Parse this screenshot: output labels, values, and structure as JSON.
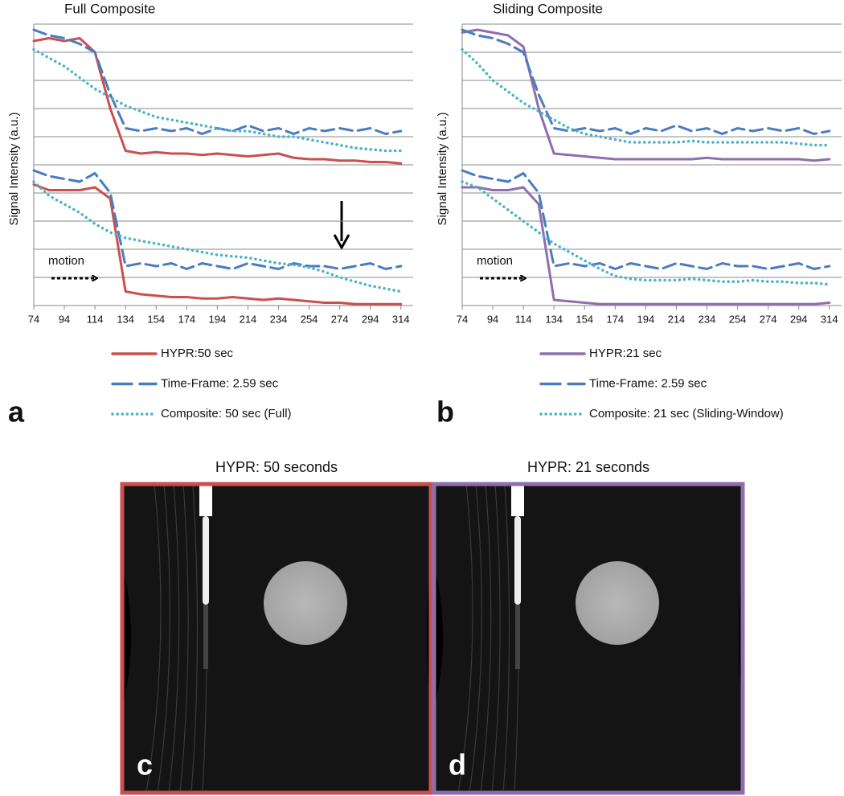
{
  "chart_data": [
    {
      "type": "line",
      "title": "Full Composite",
      "ylabel": "Signal Intensity (a.u.)",
      "panel": "a",
      "annotation": "motion",
      "x": [
        74,
        84,
        94,
        104,
        114,
        124,
        134,
        144,
        154,
        164,
        174,
        184,
        194,
        204,
        214,
        224,
        234,
        244,
        254,
        264,
        274,
        284,
        294,
        304,
        314
      ],
      "xlim": [
        74,
        322
      ],
      "xticks": [
        74,
        94,
        114,
        134,
        154,
        174,
        194,
        214,
        234,
        254,
        274,
        294,
        314
      ],
      "ylim": [
        0,
        10
      ],
      "yticks": [
        0,
        1,
        2,
        3,
        4,
        5,
        6,
        7,
        8,
        9,
        10
      ],
      "ytick_labels": false,
      "grid": true,
      "series": [
        {
          "name": "HYPR:50 sec",
          "color": "#c9504e",
          "style": "solid",
          "values": [
            9.4,
            9.5,
            9.4,
            9.5,
            9.0,
            7.0,
            5.5,
            5.4,
            5.45,
            5.4,
            5.4,
            5.35,
            5.4,
            5.35,
            5.3,
            5.35,
            5.4,
            5.25,
            5.2,
            5.2,
            5.15,
            5.15,
            5.1,
            5.1,
            5.05
          ],
          "lower_values": [
            4.3,
            4.1,
            4.1,
            4.1,
            4.2,
            3.8,
            0.5,
            0.4,
            0.35,
            0.3,
            0.3,
            0.25,
            0.25,
            0.3,
            0.25,
            0.2,
            0.25,
            0.2,
            0.15,
            0.1,
            0.1,
            0.05,
            0.05,
            0.05,
            0.05
          ]
        },
        {
          "name": "Time-Frame: 2.59 sec",
          "color": "#4a7cc0",
          "style": "dashed",
          "values": [
            9.8,
            9.6,
            9.5,
            9.3,
            9.0,
            7.5,
            6.3,
            6.2,
            6.3,
            6.2,
            6.3,
            6.1,
            6.3,
            6.2,
            6.4,
            6.2,
            6.3,
            6.1,
            6.3,
            6.2,
            6.3,
            6.2,
            6.3,
            6.1,
            6.2
          ],
          "lower_values": [
            4.8,
            4.6,
            4.5,
            4.4,
            4.7,
            4.0,
            1.4,
            1.5,
            1.4,
            1.5,
            1.3,
            1.5,
            1.4,
            1.3,
            1.5,
            1.4,
            1.3,
            1.5,
            1.4,
            1.4,
            1.3,
            1.4,
            1.5,
            1.3,
            1.4
          ]
        },
        {
          "name": "Composite: 50 sec (Full)",
          "color": "#4bb3c8",
          "style": "dotted",
          "values": [
            9.1,
            8.8,
            8.5,
            8.1,
            7.7,
            7.4,
            7.1,
            6.9,
            6.7,
            6.6,
            6.5,
            6.4,
            6.3,
            6.2,
            6.2,
            6.1,
            6.0,
            6.0,
            5.9,
            5.8,
            5.7,
            5.6,
            5.55,
            5.5,
            5.5
          ],
          "lower_values": [
            4.4,
            3.9,
            3.6,
            3.3,
            2.9,
            2.6,
            2.4,
            2.3,
            2.2,
            2.1,
            2.0,
            1.9,
            1.8,
            1.75,
            1.7,
            1.6,
            1.5,
            1.45,
            1.35,
            1.2,
            1.0,
            0.85,
            0.7,
            0.6,
            0.5
          ]
        }
      ]
    },
    {
      "type": "line",
      "title": "Sliding Composite",
      "ylabel": "Signal Intensity (a.u.)",
      "panel": "b",
      "annotation": "motion",
      "x": [
        74,
        84,
        94,
        104,
        114,
        124,
        134,
        144,
        154,
        164,
        174,
        184,
        194,
        204,
        214,
        224,
        234,
        244,
        254,
        264,
        274,
        284,
        294,
        304,
        314
      ],
      "xlim": [
        74,
        322
      ],
      "xticks": [
        74,
        94,
        114,
        134,
        154,
        174,
        194,
        214,
        234,
        254,
        274,
        294,
        314
      ],
      "ylim": [
        0,
        10
      ],
      "yticks": [
        0,
        1,
        2,
        3,
        4,
        5,
        6,
        7,
        8,
        9,
        10
      ],
      "ytick_labels": false,
      "grid": true,
      "series": [
        {
          "name": "HYPR:21 sec",
          "color": "#8e6fad",
          "style": "solid",
          "values": [
            9.7,
            9.8,
            9.7,
            9.6,
            9.2,
            7.0,
            5.4,
            5.35,
            5.3,
            5.25,
            5.2,
            5.2,
            5.2,
            5.2,
            5.2,
            5.2,
            5.25,
            5.2,
            5.2,
            5.2,
            5.2,
            5.2,
            5.2,
            5.15,
            5.2
          ],
          "lower_values": [
            4.2,
            4.2,
            4.1,
            4.1,
            4.2,
            3.6,
            0.2,
            0.15,
            0.1,
            0.05,
            0.05,
            0.05,
            0.05,
            0.05,
            0.05,
            0.05,
            0.05,
            0.05,
            0.05,
            0.05,
            0.05,
            0.05,
            0.05,
            0.05,
            0.1
          ]
        },
        {
          "name": "Time-Frame: 2.59 sec",
          "color": "#4a7cc0",
          "style": "dashed",
          "values": [
            9.8,
            9.6,
            9.5,
            9.3,
            9.0,
            7.5,
            6.3,
            6.2,
            6.3,
            6.2,
            6.3,
            6.1,
            6.3,
            6.2,
            6.4,
            6.2,
            6.3,
            6.1,
            6.3,
            6.2,
            6.3,
            6.2,
            6.3,
            6.1,
            6.2
          ],
          "lower_values": [
            4.8,
            4.6,
            4.5,
            4.4,
            4.7,
            4.0,
            1.4,
            1.5,
            1.4,
            1.5,
            1.3,
            1.5,
            1.4,
            1.3,
            1.5,
            1.4,
            1.3,
            1.5,
            1.4,
            1.4,
            1.3,
            1.4,
            1.5,
            1.3,
            1.4
          ]
        },
        {
          "name": "Composite: 21 sec (Sliding-Window)",
          "color": "#4bb3c8",
          "style": "dotted",
          "values": [
            9.1,
            8.6,
            8.0,
            7.6,
            7.2,
            6.9,
            6.6,
            6.3,
            6.1,
            6.0,
            5.9,
            5.8,
            5.8,
            5.8,
            5.8,
            5.85,
            5.8,
            5.8,
            5.8,
            5.8,
            5.8,
            5.8,
            5.75,
            5.7,
            5.7
          ],
          "lower_values": [
            4.4,
            4.2,
            3.8,
            3.4,
            3.0,
            2.6,
            2.2,
            1.9,
            1.6,
            1.3,
            1.05,
            0.95,
            0.9,
            0.9,
            0.9,
            0.95,
            0.9,
            0.85,
            0.85,
            0.9,
            0.85,
            0.85,
            0.8,
            0.8,
            0.75
          ]
        }
      ]
    }
  ],
  "images": [
    {
      "title": "HYPR: 50 seconds",
      "label": "c",
      "border_color": "#c9504e"
    },
    {
      "title": "HYPR: 21 seconds",
      "label": "d",
      "border_color": "#8e6fad"
    }
  ]
}
